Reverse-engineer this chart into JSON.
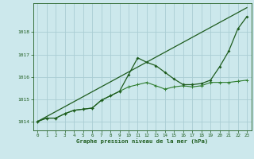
{
  "title": "Graphe pression niveau de la mer (hPa)",
  "background_color": "#cce8ec",
  "grid_color": "#aacdd4",
  "line_color_dark": "#1e5c1e",
  "line_color_medium": "#2e7d2e",
  "xlim": [
    -0.5,
    23.5
  ],
  "ylim": [
    1013.6,
    1019.3
  ],
  "yticks": [
    1014,
    1015,
    1016,
    1017,
    1018
  ],
  "xticks": [
    0,
    1,
    2,
    3,
    4,
    5,
    6,
    7,
    8,
    9,
    10,
    11,
    12,
    13,
    14,
    15,
    16,
    17,
    18,
    19,
    20,
    21,
    22,
    23
  ],
  "series1_x": [
    0,
    1,
    2,
    3,
    4,
    5,
    6,
    7,
    8,
    9,
    10,
    11,
    12,
    13,
    14,
    15,
    16,
    17,
    18,
    19,
    20,
    21,
    22,
    23
  ],
  "series1_y": [
    1014.0,
    1014.15,
    1014.15,
    1014.35,
    1014.5,
    1014.55,
    1014.6,
    1014.95,
    1015.15,
    1015.35,
    1016.1,
    1016.85,
    1016.65,
    1016.5,
    1016.2,
    1015.9,
    1015.65,
    1015.65,
    1015.7,
    1015.85,
    1016.45,
    1017.15,
    1018.15,
    1018.7
  ],
  "series2_x": [
    0,
    1,
    2,
    3,
    4,
    5,
    6,
    7,
    8,
    9,
    10,
    11,
    12,
    13,
    14,
    15,
    16,
    17,
    18,
    19,
    20,
    21,
    22,
    23
  ],
  "series2_y": [
    1014.0,
    1014.15,
    1014.15,
    1014.35,
    1014.5,
    1014.55,
    1014.6,
    1014.95,
    1015.15,
    1015.35,
    1015.55,
    1015.65,
    1015.75,
    1015.6,
    1015.45,
    1015.55,
    1015.6,
    1015.55,
    1015.6,
    1015.75,
    1015.75,
    1015.75,
    1015.8,
    1015.85
  ],
  "series3_x": [
    0,
    23
  ],
  "series3_y": [
    1014.0,
    1019.1
  ]
}
